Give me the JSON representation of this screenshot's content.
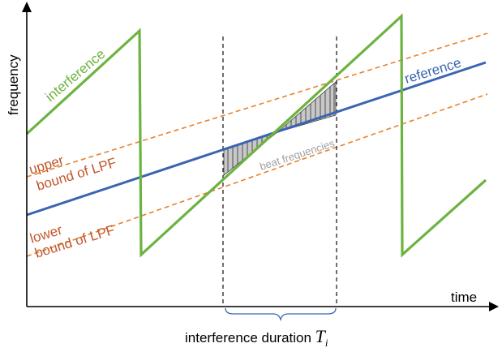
{
  "axes": {
    "y_label": "frequency",
    "x_label": "time"
  },
  "labels": {
    "interference": "interference",
    "reference": "reference",
    "upper_line1": "upper",
    "upper_line2": "bound of LPF",
    "lower_line1": "lower",
    "lower_line2": "bound of LPF",
    "beat": "beat frequencies",
    "duration": "interference duration ",
    "duration_symbol": "T",
    "duration_subscript": "i"
  },
  "colors": {
    "interference": "#6cb33f",
    "reference": "#3a66b0",
    "lpf_bounds": "#e8822a",
    "label_lpf": "#c0562a",
    "brace": "#3a66b0",
    "beat_text": "#a0a0a0",
    "hatch_fill": "#c8c8c8"
  }
}
